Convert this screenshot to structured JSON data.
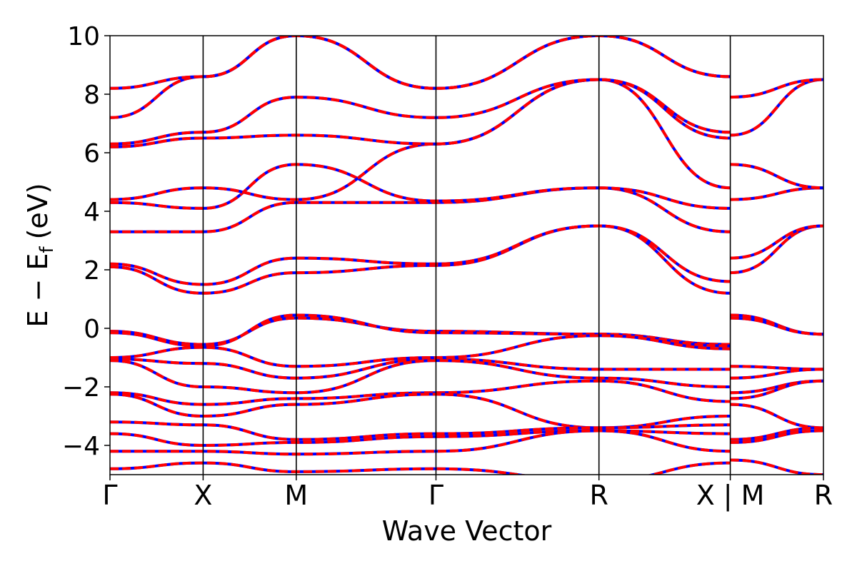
{
  "chart_data": {
    "type": "line",
    "xlabel": "Wave Vector",
    "ylabel": {
      "main": "E − E",
      "subscript": "f",
      "unit": "(eV)"
    },
    "ylim": [
      -5,
      10
    ],
    "yticks": [
      10,
      8,
      6,
      4,
      2,
      0,
      -2,
      -4
    ],
    "ytick_labels": [
      "10",
      "8",
      "6",
      "4",
      "2",
      "0",
      "−2",
      "−4"
    ],
    "kpath_positions": [
      0,
      1,
      2,
      3.5,
      5.25,
      6.66,
      7.66
    ],
    "kpath_labels": [
      "Γ",
      "X",
      "M",
      "Γ",
      "R",
      "X | M",
      "R"
    ],
    "xlim": [
      0,
      7.66
    ],
    "grid": false,
    "legend": "none",
    "series_style": [
      {
        "role": "overlay",
        "color": "#ff0000",
        "style": "solid"
      },
      {
        "role": "underlay",
        "color": "#0000ff",
        "style": "dashed"
      }
    ],
    "bands": [
      {
        "x": [
          0,
          1,
          2,
          3.5,
          5.25,
          6.66
        ],
        "y": [
          -0.1,
          -0.55,
          0.35,
          -0.1,
          -0.2,
          -0.55
        ]
      },
      {
        "x": [
          0,
          1,
          2,
          3.5,
          5.25,
          6.66
        ],
        "y": [
          -0.15,
          -0.6,
          0.45,
          -0.15,
          -0.2,
          -0.6
        ]
      },
      {
        "x": [
          0,
          1,
          2,
          3.5,
          5.25,
          6.66
        ],
        "y": [
          -1.0,
          -0.65,
          -1.3,
          -1.0,
          -0.25,
          -0.7
        ]
      },
      {
        "x": [
          0,
          1,
          2,
          3.5,
          5.25,
          6.66
        ],
        "y": [
          -1.05,
          -1.2,
          -1.7,
          -1.05,
          -1.4,
          -1.4
        ]
      },
      {
        "x": [
          0,
          1,
          2,
          3.5,
          5.25,
          6.66
        ],
        "y": [
          -1.1,
          -2.0,
          -2.2,
          -1.1,
          -1.7,
          -2.0
        ]
      },
      {
        "x": [
          0,
          1,
          2,
          3.5,
          5.25,
          6.66
        ],
        "y": [
          -2.2,
          -2.6,
          -2.4,
          -2.2,
          -1.8,
          -2.5
        ]
      },
      {
        "x": [
          0,
          1,
          2,
          3.5,
          5.25,
          6.66
        ],
        "y": [
          -2.25,
          -3.0,
          -2.6,
          -2.25,
          -3.4,
          -3.0
        ]
      },
      {
        "x": [
          0,
          1,
          2,
          3.5,
          5.25,
          6.66
        ],
        "y": [
          -3.2,
          -3.3,
          -3.8,
          -3.6,
          -3.4,
          -3.3
        ]
      },
      {
        "x": [
          0,
          1,
          2,
          3.5,
          5.25,
          6.66
        ],
        "y": [
          -3.6,
          -4.0,
          -3.9,
          -3.7,
          -3.5,
          -3.6
        ]
      },
      {
        "x": [
          0,
          1,
          2,
          3.5,
          5.25,
          6.66
        ],
        "y": [
          -4.2,
          -4.2,
          -4.3,
          -4.2,
          -3.5,
          -4.2
        ]
      },
      {
        "x": [
          0,
          1,
          2,
          3.5,
          5.25,
          6.66
        ],
        "y": [
          -4.8,
          -4.6,
          -4.9,
          -4.8,
          -5.2,
          -4.6
        ]
      },
      {
        "x": [
          0,
          1,
          2,
          3.5,
          5.25,
          6.66
        ],
        "y": [
          2.1,
          1.2,
          1.9,
          2.15,
          3.5,
          1.2
        ]
      },
      {
        "x": [
          0,
          1,
          2,
          3.5,
          5.25,
          6.66
        ],
        "y": [
          2.2,
          1.5,
          2.4,
          2.2,
          3.5,
          1.6
        ]
      },
      {
        "x": [
          0,
          1,
          2,
          3.5,
          5.25,
          6.66
        ],
        "y": [
          3.3,
          3.3,
          4.3,
          4.3,
          4.8,
          3.3
        ]
      },
      {
        "x": [
          0,
          1,
          2,
          3.5,
          5.25,
          6.66
        ],
        "y": [
          4.3,
          4.1,
          5.6,
          4.35,
          4.8,
          4.1
        ]
      },
      {
        "x": [
          0,
          1,
          2,
          3.5,
          5.25,
          6.66
        ],
        "y": [
          4.4,
          4.8,
          4.4,
          6.3,
          8.5,
          4.8
        ]
      },
      {
        "x": [
          0,
          1,
          2,
          3.5,
          5.25,
          6.66
        ],
        "y": [
          6.2,
          6.5,
          6.6,
          6.3,
          8.5,
          6.5
        ]
      },
      {
        "x": [
          0,
          1,
          2,
          3.5,
          5.25,
          6.66
        ],
        "y": [
          6.3,
          6.7,
          7.9,
          7.2,
          8.5,
          6.7
        ]
      },
      {
        "x": [
          0,
          1,
          2,
          3.5,
          5.25,
          6.66
        ],
        "y": [
          7.2,
          8.6,
          10.0,
          8.2,
          10.0,
          8.6
        ]
      },
      {
        "x": [
          0,
          1,
          2,
          3.5,
          5.25,
          6.66
        ],
        "y": [
          8.2,
          8.6,
          10.0,
          8.2,
          10.0,
          8.6
        ]
      },
      {
        "x": [
          6.66,
          7.66
        ],
        "y": [
          0.45,
          -0.2
        ]
      },
      {
        "x": [
          6.66,
          7.66
        ],
        "y": [
          0.35,
          -0.2
        ]
      },
      {
        "x": [
          6.66,
          7.66
        ],
        "y": [
          1.9,
          3.5
        ]
      },
      {
        "x": [
          6.66,
          7.66
        ],
        "y": [
          2.4,
          3.5
        ]
      },
      {
        "x": [
          6.66,
          7.66
        ],
        "y": [
          4.4,
          4.8
        ]
      },
      {
        "x": [
          6.66,
          7.66
        ],
        "y": [
          5.6,
          4.8
        ]
      },
      {
        "x": [
          6.66,
          7.66
        ],
        "y": [
          6.6,
          8.5
        ]
      },
      {
        "x": [
          6.66,
          7.66
        ],
        "y": [
          7.9,
          8.5
        ]
      },
      {
        "x": [
          6.66,
          7.66
        ],
        "y": [
          -1.3,
          -1.4
        ]
      },
      {
        "x": [
          6.66,
          7.66
        ],
        "y": [
          -1.7,
          -1.4
        ]
      },
      {
        "x": [
          6.66,
          7.66
        ],
        "y": [
          -2.2,
          -1.8
        ]
      },
      {
        "x": [
          6.66,
          7.66
        ],
        "y": [
          -2.4,
          -1.8
        ]
      },
      {
        "x": [
          6.66,
          7.66
        ],
        "y": [
          -2.6,
          -3.4
        ]
      },
      {
        "x": [
          6.66,
          7.66
        ],
        "y": [
          -3.8,
          -3.4
        ]
      },
      {
        "x": [
          6.66,
          7.66
        ],
        "y": [
          -3.9,
          -3.5
        ]
      },
      {
        "x": [
          6.66,
          7.66
        ],
        "y": [
          -4.5,
          -5.0
        ]
      }
    ]
  }
}
